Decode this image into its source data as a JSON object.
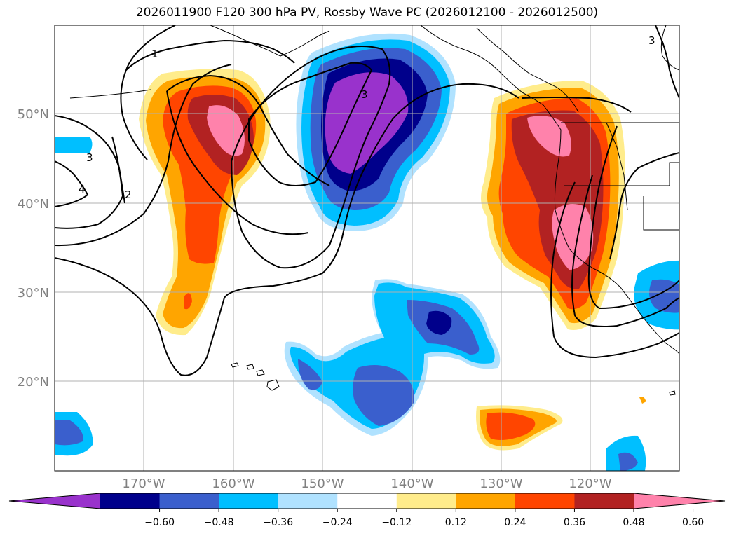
{
  "title": "2026011900 F120 300 hPa PV, Rossby Wave PC (2026012100 - 2026012500)",
  "lat_labels": [
    "50°N",
    "40°N",
    "30°N",
    "20°N"
  ],
  "lon_labels": [
    "170°W",
    "160°W",
    "150°W",
    "140°W",
    "130°W",
    "120°W"
  ],
  "colorbar": {
    "ticks": [
      "−0.60",
      "−0.48",
      "−0.36",
      "−0.24",
      "−0.12",
      "0.12",
      "0.24",
      "0.36",
      "0.48",
      "0.60"
    ],
    "colors": [
      "#9932cc",
      "#00008b",
      "#3a5fcd",
      "#00bfff",
      "#b0e2ff",
      "#ffffff",
      "#ffec8b",
      "#ffa500",
      "#ff4500",
      "#b22222",
      "#ff82ab"
    ]
  },
  "contour_labels": [
    "1",
    "2",
    "3",
    "3",
    "3",
    "4"
  ]
}
